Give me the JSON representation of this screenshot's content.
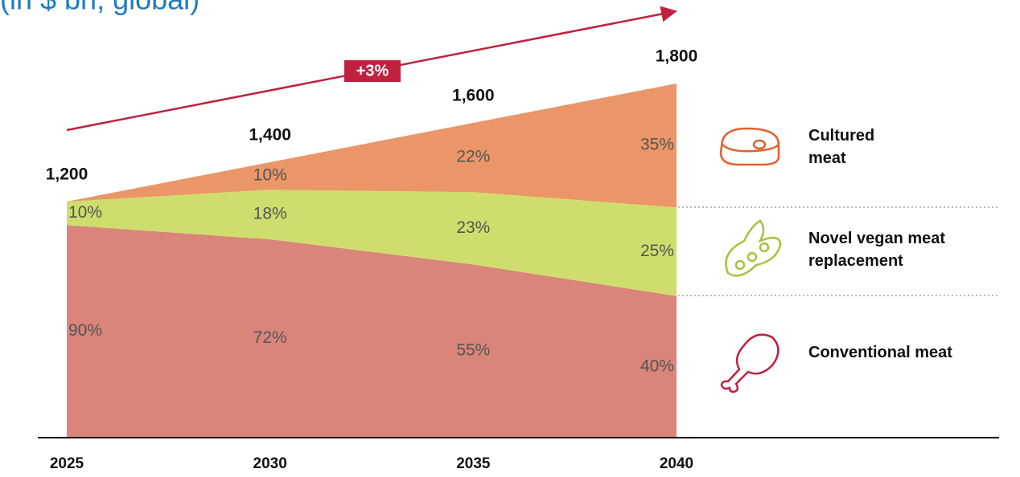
{
  "chart_data": {
    "type": "stacked-area",
    "subtitle": "(in $ bn, global)",
    "annotation": "+3%",
    "categories": [
      "2025",
      "2030",
      "2035",
      "2040"
    ],
    "totals": {
      "values": [
        1200,
        1400,
        1600,
        1800
      ],
      "value_labels": [
        "1,200",
        "1,400",
        "1,600",
        "1,800"
      ]
    },
    "series": [
      {
        "name": "Conventional meat",
        "color": "#d9857a",
        "values": [
          90,
          72,
          55,
          40
        ],
        "value_labels": [
          "90%",
          "72%",
          "55%",
          "40%"
        ]
      },
      {
        "name": "Novel vegan meat replacement",
        "color": "#cfdd6c",
        "values": [
          10,
          18,
          23,
          25
        ],
        "value_labels": [
          "10%",
          "18%",
          "23%",
          "25%"
        ]
      },
      {
        "name": "Cultured meat",
        "color": "#eb9668",
        "values": [
          0,
          10,
          22,
          35
        ],
        "value_labels": [
          null,
          "10%",
          "22%",
          "35%"
        ]
      }
    ]
  }
}
